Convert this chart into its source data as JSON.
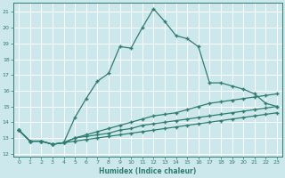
{
  "xlabel": "Humidex (Indice chaleur)",
  "bg_color": "#cce8ec",
  "grid_color": "#ffffff",
  "line_color": "#2e7d6e",
  "xlim": [
    -0.5,
    23.5
  ],
  "ylim": [
    11.8,
    21.6
  ],
  "yticks": [
    12,
    13,
    14,
    15,
    16,
    17,
    18,
    19,
    20,
    21
  ],
  "xticks": [
    0,
    1,
    2,
    3,
    4,
    5,
    6,
    7,
    8,
    9,
    10,
    11,
    12,
    13,
    14,
    15,
    16,
    17,
    18,
    19,
    20,
    21,
    22,
    23
  ],
  "curve1_x": [
    0,
    1,
    2,
    3,
    4,
    5,
    6,
    7,
    8,
    9,
    10,
    11,
    12,
    13,
    14,
    15,
    16,
    17,
    18,
    19,
    20,
    21,
    22,
    23
  ],
  "curve1_y": [
    13.5,
    12.8,
    12.8,
    12.6,
    12.7,
    14.3,
    15.5,
    16.6,
    17.1,
    18.8,
    18.7,
    20.0,
    21.2,
    20.4,
    19.5,
    19.3,
    18.8,
    16.5,
    16.5,
    16.3,
    16.1,
    15.8,
    15.2,
    15.0
  ],
  "curve2_x": [
    0,
    1,
    2,
    3,
    4,
    5,
    6,
    7,
    8,
    9,
    10,
    11,
    12,
    13,
    14,
    15,
    16,
    17,
    18,
    19,
    20,
    21,
    22,
    23
  ],
  "curve2_y": [
    13.5,
    12.8,
    12.8,
    12.6,
    12.7,
    13.0,
    13.2,
    13.4,
    13.6,
    13.8,
    14.0,
    14.2,
    14.4,
    14.5,
    14.6,
    14.8,
    15.0,
    15.2,
    15.3,
    15.4,
    15.5,
    15.6,
    15.7,
    15.8
  ],
  "curve3_x": [
    0,
    1,
    2,
    3,
    4,
    5,
    6,
    7,
    8,
    9,
    10,
    11,
    12,
    13,
    14,
    15,
    16,
    17,
    18,
    19,
    20,
    21,
    22,
    23
  ],
  "curve3_y": [
    13.5,
    12.8,
    12.8,
    12.6,
    12.7,
    13.0,
    13.1,
    13.2,
    13.3,
    13.5,
    13.6,
    13.8,
    13.9,
    14.0,
    14.1,
    14.2,
    14.3,
    14.4,
    14.5,
    14.6,
    14.7,
    14.8,
    14.9,
    15.0
  ],
  "curve4_x": [
    0,
    1,
    2,
    3,
    4,
    5,
    6,
    7,
    8,
    9,
    10,
    11,
    12,
    13,
    14,
    15,
    16,
    17,
    18,
    19,
    20,
    21,
    22,
    23
  ],
  "curve4_y": [
    13.5,
    12.8,
    12.8,
    12.6,
    12.7,
    12.8,
    12.9,
    13.0,
    13.1,
    13.2,
    13.3,
    13.4,
    13.5,
    13.6,
    13.7,
    13.8,
    13.9,
    14.0,
    14.1,
    14.2,
    14.3,
    14.4,
    14.5,
    14.6
  ]
}
